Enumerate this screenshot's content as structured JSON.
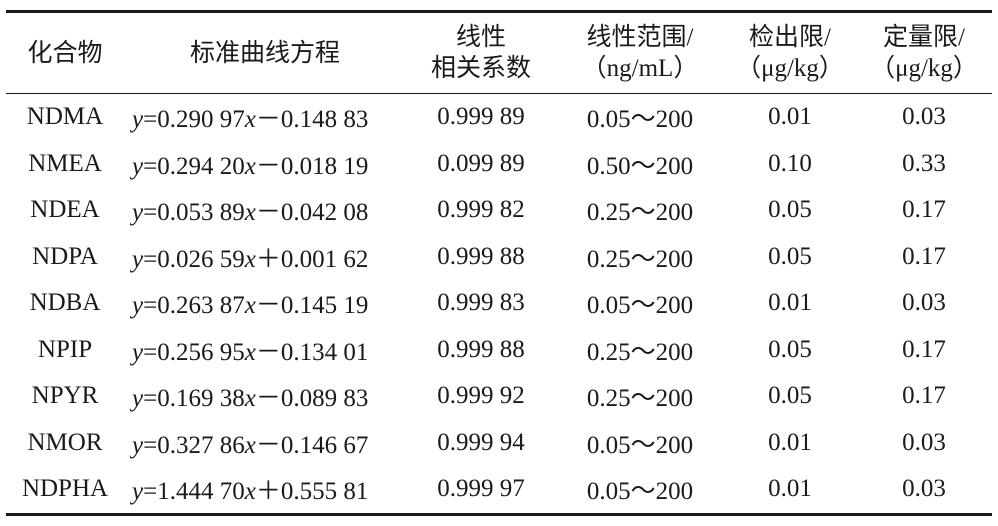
{
  "table": {
    "headers": [
      {
        "line1": "化合物",
        "line2": ""
      },
      {
        "line1": "标准曲线方程",
        "line2": ""
      },
      {
        "line1": "线性",
        "line2": "相关系数"
      },
      {
        "line1": "线性范围/",
        "line2": "（ng/mL）"
      },
      {
        "line1": "检出限/",
        "line2": "（μg/kg）"
      },
      {
        "line1": "定量限/",
        "line2": "（μg/kg）"
      }
    ],
    "rows": [
      {
        "compound": "NDMA",
        "equation": "y=0.290 97x－0.148 83",
        "r": "0.999 89",
        "range": "0.05～200",
        "lod": "0.01",
        "loq": "0.03"
      },
      {
        "compound": "NMEA",
        "equation": "y=0.294 20x－0.018 19",
        "r": "0.099 89",
        "range": "0.50～200",
        "lod": "0.10",
        "loq": "0.33"
      },
      {
        "compound": "NDEA",
        "equation": "y=0.053 89x－0.042 08",
        "r": "0.999 82",
        "range": "0.25～200",
        "lod": "0.05",
        "loq": "0.17"
      },
      {
        "compound": "NDPA",
        "equation": "y=0.026 59x＋0.001 62",
        "r": "0.999 88",
        "range": "0.25～200",
        "lod": "0.05",
        "loq": "0.17"
      },
      {
        "compound": "NDBA",
        "equation": "y=0.263 87x－0.145 19",
        "r": "0.999 83",
        "range": "0.05～200",
        "lod": "0.01",
        "loq": "0.03"
      },
      {
        "compound": "NPIP",
        "equation": "y=0.256 95x－0.134 01",
        "r": "0.999 88",
        "range": "0.25～200",
        "lod": "0.05",
        "loq": "0.17"
      },
      {
        "compound": "NPYR",
        "equation": "y=0.169 38x－0.089 83",
        "r": "0.999 92",
        "range": "0.25～200",
        "lod": "0.05",
        "loq": "0.17"
      },
      {
        "compound": "NMOR",
        "equation": "y=0.327 86x－0.146 67",
        "r": "0.999 94",
        "range": "0.05～200",
        "lod": "0.01",
        "loq": "0.03"
      },
      {
        "compound": "NDPHA",
        "equation": "y=1.444 70x＋0.555 81",
        "r": "0.999 97",
        "range": "0.05～200",
        "lod": "0.01",
        "loq": "0.03"
      }
    ]
  }
}
